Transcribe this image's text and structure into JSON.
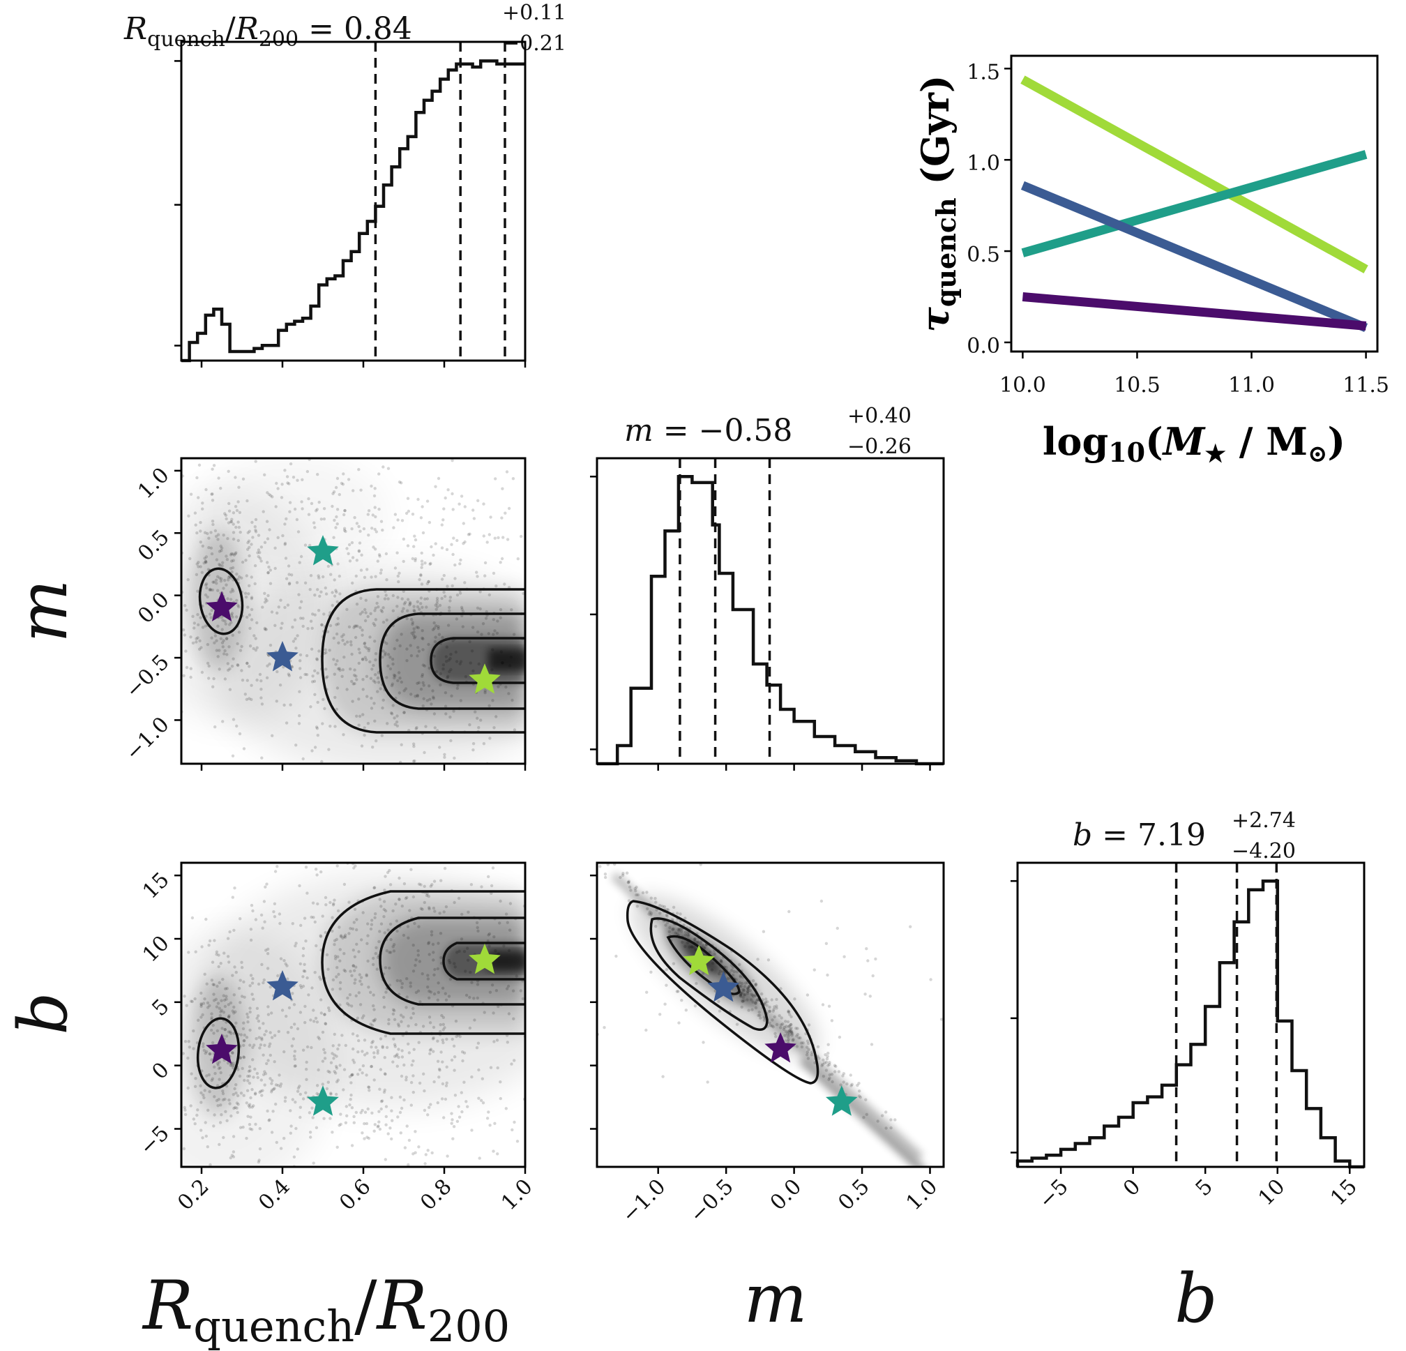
{
  "chart_data": [
    {
      "type": "histogram",
      "panel": "R_quench/R200 marginal",
      "title_main": "Rquench/R200 = 0.84",
      "title_sup": "+0.11",
      "title_sub": "−0.21",
      "xlim": [
        0.15,
        1.0
      ],
      "bins": [
        0.15,
        0.17,
        0.19,
        0.21,
        0.23,
        0.25,
        0.27,
        0.29,
        0.31,
        0.33,
        0.35,
        0.37,
        0.39,
        0.41,
        0.43,
        0.45,
        0.47,
        0.49,
        0.51,
        0.53,
        0.55,
        0.57,
        0.59,
        0.61,
        0.63,
        0.65,
        0.67,
        0.69,
        0.71,
        0.73,
        0.75,
        0.77,
        0.79,
        0.81,
        0.83,
        0.85,
        0.87,
        0.89,
        0.91,
        0.93,
        0.95,
        0.97,
        1.0
      ],
      "counts": [
        0.0,
        0.06,
        0.09,
        0.15,
        0.17,
        0.12,
        0.03,
        0.03,
        0.03,
        0.04,
        0.05,
        0.05,
        0.1,
        0.12,
        0.13,
        0.14,
        0.18,
        0.25,
        0.27,
        0.28,
        0.33,
        0.36,
        0.42,
        0.46,
        0.51,
        0.58,
        0.64,
        0.7,
        0.74,
        0.82,
        0.86,
        0.89,
        0.93,
        0.96,
        0.98,
        0.98,
        0.97,
        0.99,
        0.99,
        0.98,
        0.98,
        0.98
      ],
      "quantile_lines": [
        0.63,
        0.84,
        0.95
      ],
      "x_ticks": [
        0.2,
        0.4,
        0.6,
        0.8,
        1.0
      ]
    },
    {
      "type": "histogram",
      "panel": "m marginal",
      "title_main": "m = −0.58",
      "title_sup": "+0.40",
      "title_sub": "−0.26",
      "xlim": [
        -1.45,
        1.1
      ],
      "bins": [
        -1.45,
        -1.3,
        -1.2,
        -1.05,
        -0.95,
        -0.85,
        -0.75,
        -0.6,
        -0.55,
        -0.45,
        -0.3,
        -0.2,
        -0.1,
        0.0,
        0.15,
        0.3,
        0.45,
        0.6,
        0.75,
        0.9,
        1.1
      ],
      "counts": [
        0.0,
        0.06,
        0.25,
        0.62,
        0.77,
        0.95,
        0.93,
        0.79,
        0.63,
        0.51,
        0.33,
        0.26,
        0.18,
        0.14,
        0.09,
        0.06,
        0.04,
        0.02,
        0.01,
        0.0
      ],
      "quantile_lines": [
        -0.84,
        -0.58,
        -0.18
      ],
      "x_ticks": [
        -1.0,
        -0.5,
        0.0,
        0.5,
        1.0
      ]
    },
    {
      "type": "histogram",
      "panel": "b marginal",
      "title_main": "b = 7.19",
      "title_sup": "+2.74",
      "title_sub": "−4.20",
      "xlim": [
        -8.0,
        16.0
      ],
      "bins": [
        -8,
        -7,
        -6,
        -5,
        -4,
        -3,
        -2,
        -1,
        0,
        1,
        2,
        3,
        4,
        5,
        6,
        7,
        8,
        9,
        10,
        11,
        12,
        13,
        14,
        15,
        16
      ],
      "counts": [
        0.02,
        0.03,
        0.04,
        0.06,
        0.08,
        0.1,
        0.14,
        0.17,
        0.22,
        0.24,
        0.28,
        0.35,
        0.42,
        0.55,
        0.7,
        0.84,
        0.95,
        0.98,
        0.5,
        0.33,
        0.2,
        0.1,
        0.02,
        0.0
      ],
      "quantile_lines": [
        2.99,
        7.19,
        9.93
      ],
      "x_ticks": [
        -5,
        0,
        5,
        10,
        15
      ]
    },
    {
      "type": "scatter",
      "panel": "m vs Rquench/R200",
      "xlim": [
        0.15,
        1.0
      ],
      "ylim": [
        -1.35,
        1.1
      ],
      "x_ticks": [
        0.2,
        0.4,
        0.6,
        0.8,
        1.0
      ],
      "y_ticks": [
        -1.0,
        -0.5,
        0.0,
        0.5,
        1.0
      ],
      "y_tick_labels": [
        "−1.0",
        "−0.5",
        "0.0",
        "0.5",
        "1.0"
      ],
      "ylabel": "m",
      "stars": [
        {
          "x": 0.25,
          "y": -0.1,
          "color": "#4b0c6b"
        },
        {
          "x": 0.4,
          "y": -0.5,
          "color": "#3b5b93"
        },
        {
          "x": 0.5,
          "y": 0.35,
          "color": "#1f9e89"
        },
        {
          "x": 0.9,
          "y": -0.68,
          "color": "#a0da39"
        }
      ]
    },
    {
      "type": "scatter",
      "panel": "b vs Rquench/R200",
      "xlim": [
        0.15,
        1.0
      ],
      "ylim": [
        -8.0,
        16.0
      ],
      "x_ticks": [
        0.2,
        0.4,
        0.6,
        0.8,
        1.0
      ],
      "x_tick_labels": [
        "0.2",
        "0.4",
        "0.6",
        "0.8",
        "1.0"
      ],
      "y_ticks": [
        -5,
        0,
        5,
        10,
        15
      ],
      "y_tick_labels": [
        "−5",
        "0",
        "5",
        "10",
        "15"
      ],
      "xlabel": "Rquench/R200",
      "ylabel": "b",
      "stars": [
        {
          "x": 0.25,
          "y": 1.2,
          "color": "#4b0c6b"
        },
        {
          "x": 0.4,
          "y": 6.2,
          "color": "#3b5b93"
        },
        {
          "x": 0.5,
          "y": -2.9,
          "color": "#1f9e89"
        },
        {
          "x": 0.9,
          "y": 8.3,
          "color": "#a0da39"
        }
      ]
    },
    {
      "type": "scatter",
      "panel": "b vs m",
      "xlim": [
        -1.45,
        1.1
      ],
      "ylim": [
        -8.0,
        16.0
      ],
      "x_ticks": [
        -1.0,
        -0.5,
        0.0,
        0.5,
        1.0
      ],
      "x_tick_labels": [
        "−1.0",
        "−0.5",
        "0.0",
        "0.5",
        "1.0"
      ],
      "xlabel": "m",
      "stars": [
        {
          "x": -0.7,
          "y": 8.2,
          "color": "#a0da39"
        },
        {
          "x": -0.52,
          "y": 6.1,
          "color": "#3b5b93"
        },
        {
          "x": -0.1,
          "y": 1.3,
          "color": "#4b0c6b"
        },
        {
          "x": 0.35,
          "y": -2.9,
          "color": "#1f9e89"
        }
      ]
    },
    {
      "type": "line",
      "panel": "tau_quench vs stellar mass",
      "xlabel": "log10(M★ / M⊙)",
      "ylabel": "τquench (Gyr)",
      "xlim": [
        9.95,
        11.55
      ],
      "ylim": [
        -0.05,
        1.57
      ],
      "x_ticks": [
        10.0,
        10.5,
        11.0,
        11.5
      ],
      "x_tick_labels": [
        "10.0",
        "10.5",
        "11.0",
        "11.5"
      ],
      "y_ticks": [
        0.0,
        0.5,
        1.0,
        1.5
      ],
      "y_tick_labels": [
        "0.0",
        "0.5",
        "1.0",
        "1.5"
      ],
      "series": [
        {
          "x": [
            10.0,
            11.5
          ],
          "y": [
            1.44,
            0.4
          ],
          "color": "#a0da39"
        },
        {
          "x": [
            10.0,
            11.5
          ],
          "y": [
            0.49,
            1.03
          ],
          "color": "#1f9e89"
        },
        {
          "x": [
            10.0,
            11.5
          ],
          "y": [
            0.86,
            0.08
          ],
          "color": "#3b5b93"
        },
        {
          "x": [
            10.0,
            11.5
          ],
          "y": [
            0.25,
            0.09
          ],
          "color": "#4b0c6b"
        }
      ]
    }
  ]
}
